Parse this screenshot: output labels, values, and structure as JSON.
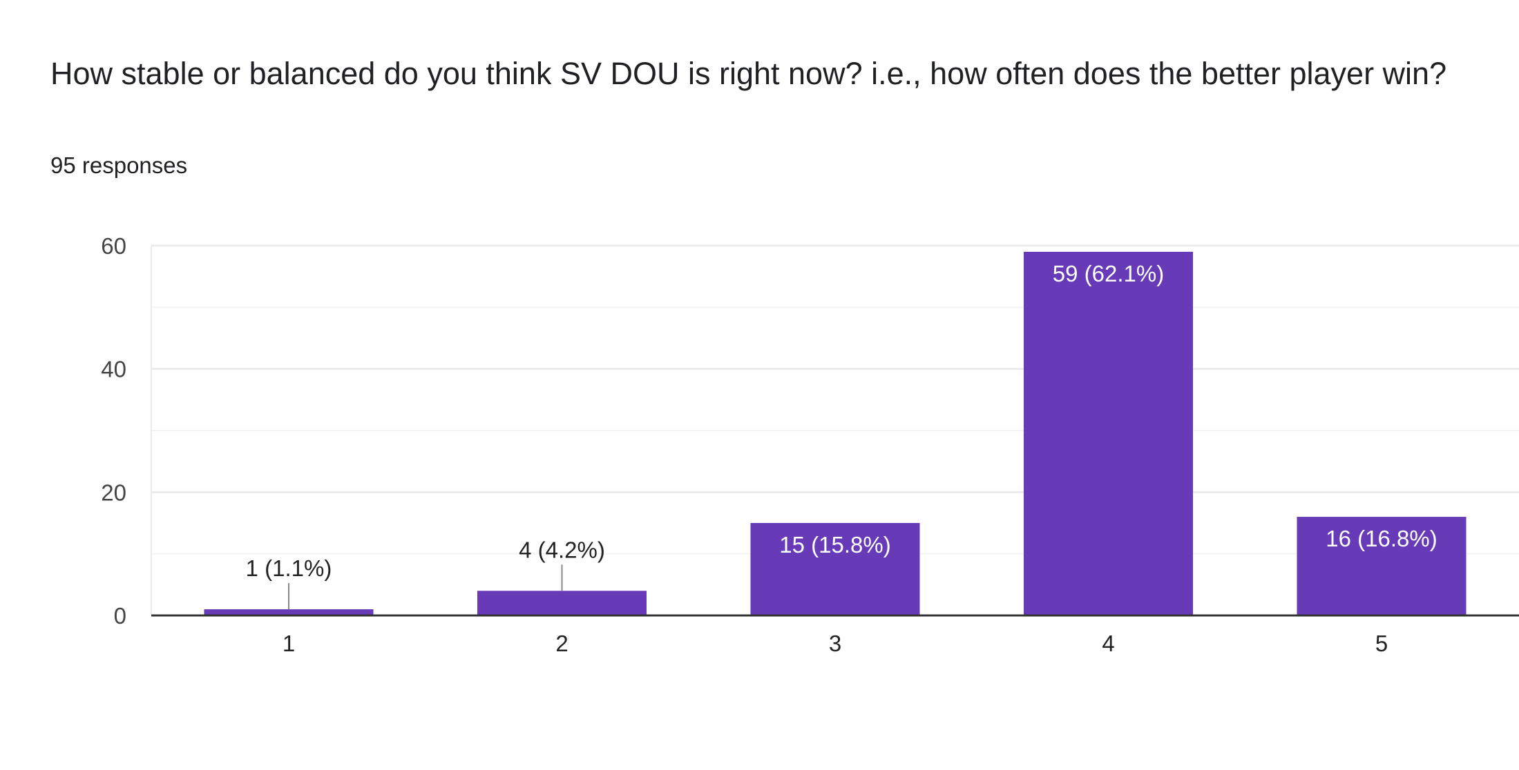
{
  "question": {
    "title": "How stable or balanced do you think SV DOU is right now? i.e., how often does the better player win?",
    "responses": "95 responses"
  },
  "colors": {
    "bar": "#673ab7",
    "grid": "#ebebeb",
    "grid_minor": "#f3f3f3",
    "axis": "#333333"
  },
  "chart_data": {
    "type": "bar",
    "title": "How stable or balanced do you think SV DOU is right now? i.e., how often does the better player win?",
    "categories": [
      "1",
      "2",
      "3",
      "4",
      "5"
    ],
    "values": [
      1,
      4,
      15,
      59,
      16
    ],
    "data_labels": [
      "1 (1.1%)",
      "4 (4.2%)",
      "15 (15.8%)",
      "59 (62.1%)",
      "16 (16.8%)"
    ],
    "yticks": [
      0,
      20,
      40,
      60
    ],
    "ylim": [
      0,
      60
    ],
    "xlabel": "",
    "ylabel": "",
    "grid": true
  }
}
